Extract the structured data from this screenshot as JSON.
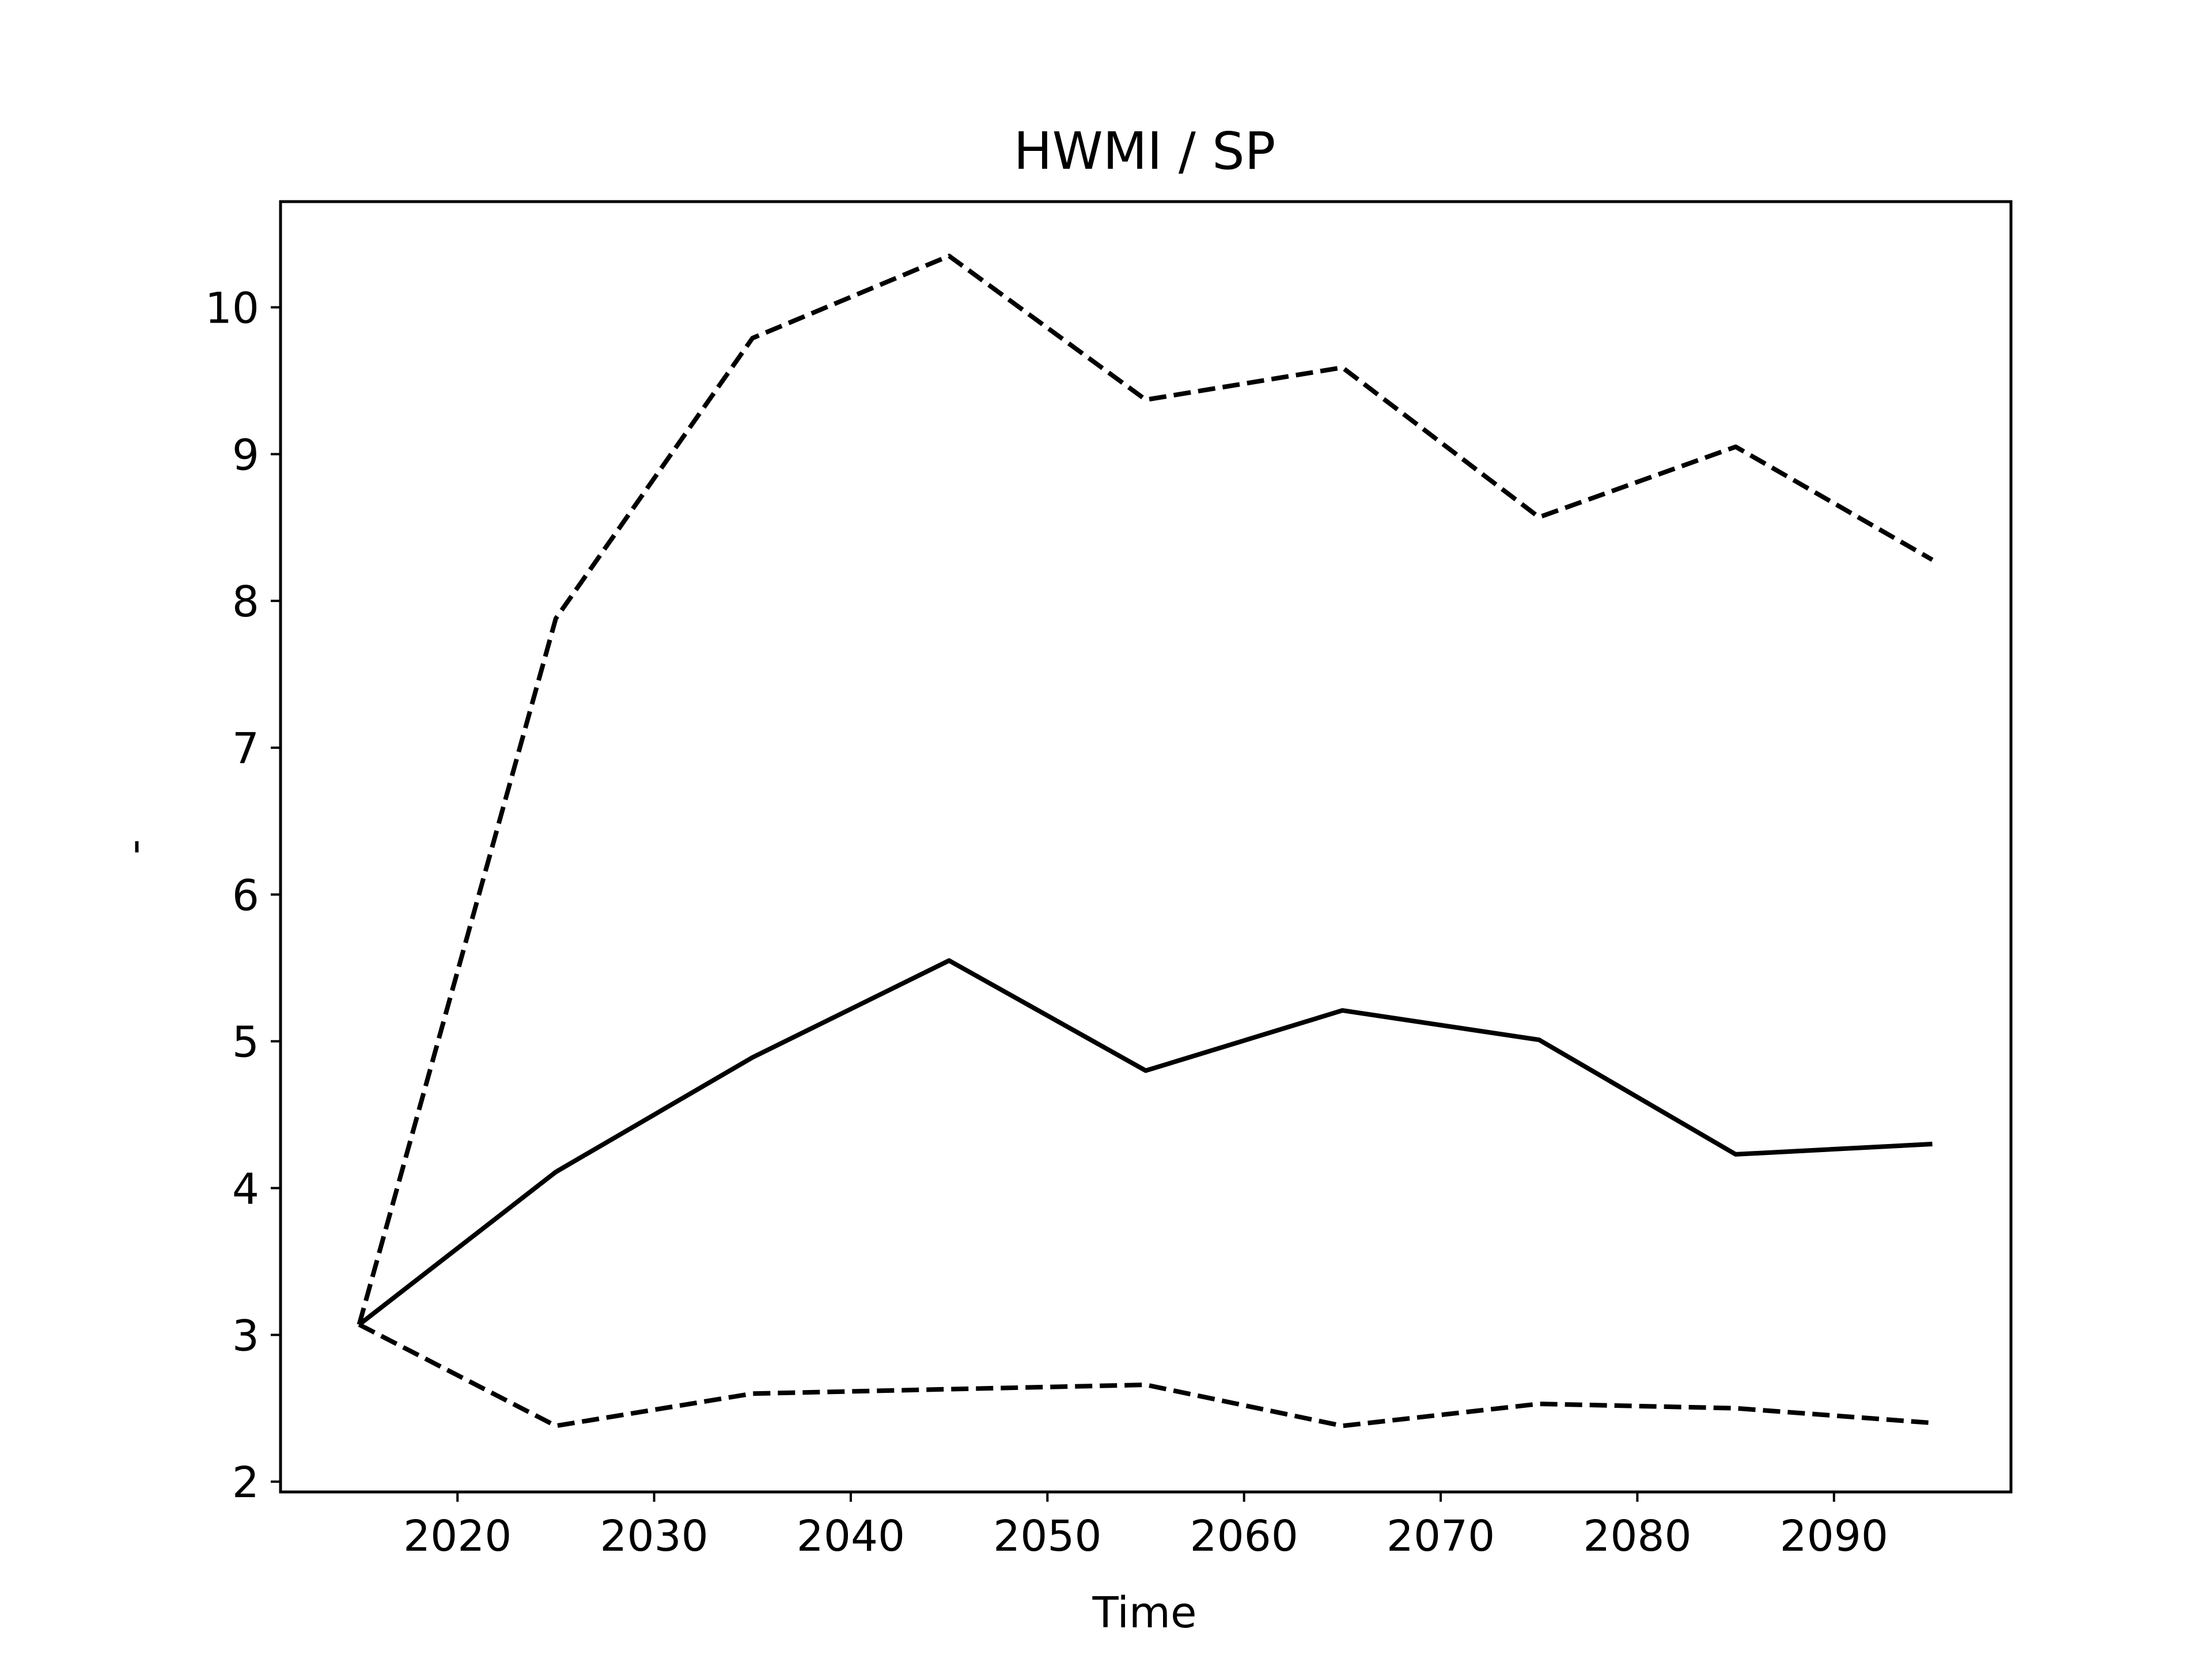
{
  "chart_data": {
    "type": "line",
    "title": "HWMI / SP",
    "xlabel": "Time",
    "ylabel": "-",
    "x": [
      2015,
      2025,
      2035,
      2045,
      2055,
      2065,
      2075,
      2085,
      2095
    ],
    "xlim": [
      2011,
      2099
    ],
    "ylim": [
      1.93,
      10.72
    ],
    "xticks": [
      2020,
      2030,
      2040,
      2050,
      2060,
      2070,
      2080,
      2090
    ],
    "yticks": [
      2,
      3,
      4,
      5,
      6,
      7,
      8,
      9,
      10
    ],
    "grid": false,
    "legend": "none",
    "series": [
      {
        "style": "dashed",
        "color": "#000000",
        "values": [
          3.07,
          7.88,
          9.79,
          10.35,
          9.37,
          9.59,
          8.57,
          9.05,
          8.28
        ]
      },
      {
        "style": "solid",
        "color": "#000000",
        "values": [
          3.07,
          4.11,
          4.89,
          5.55,
          4.8,
          5.21,
          5.01,
          4.23,
          4.3
        ]
      },
      {
        "style": "dashed",
        "color": "#000000",
        "values": [
          3.07,
          2.38,
          2.6,
          2.63,
          2.66,
          2.38,
          2.53,
          2.5,
          2.4
        ]
      }
    ]
  }
}
